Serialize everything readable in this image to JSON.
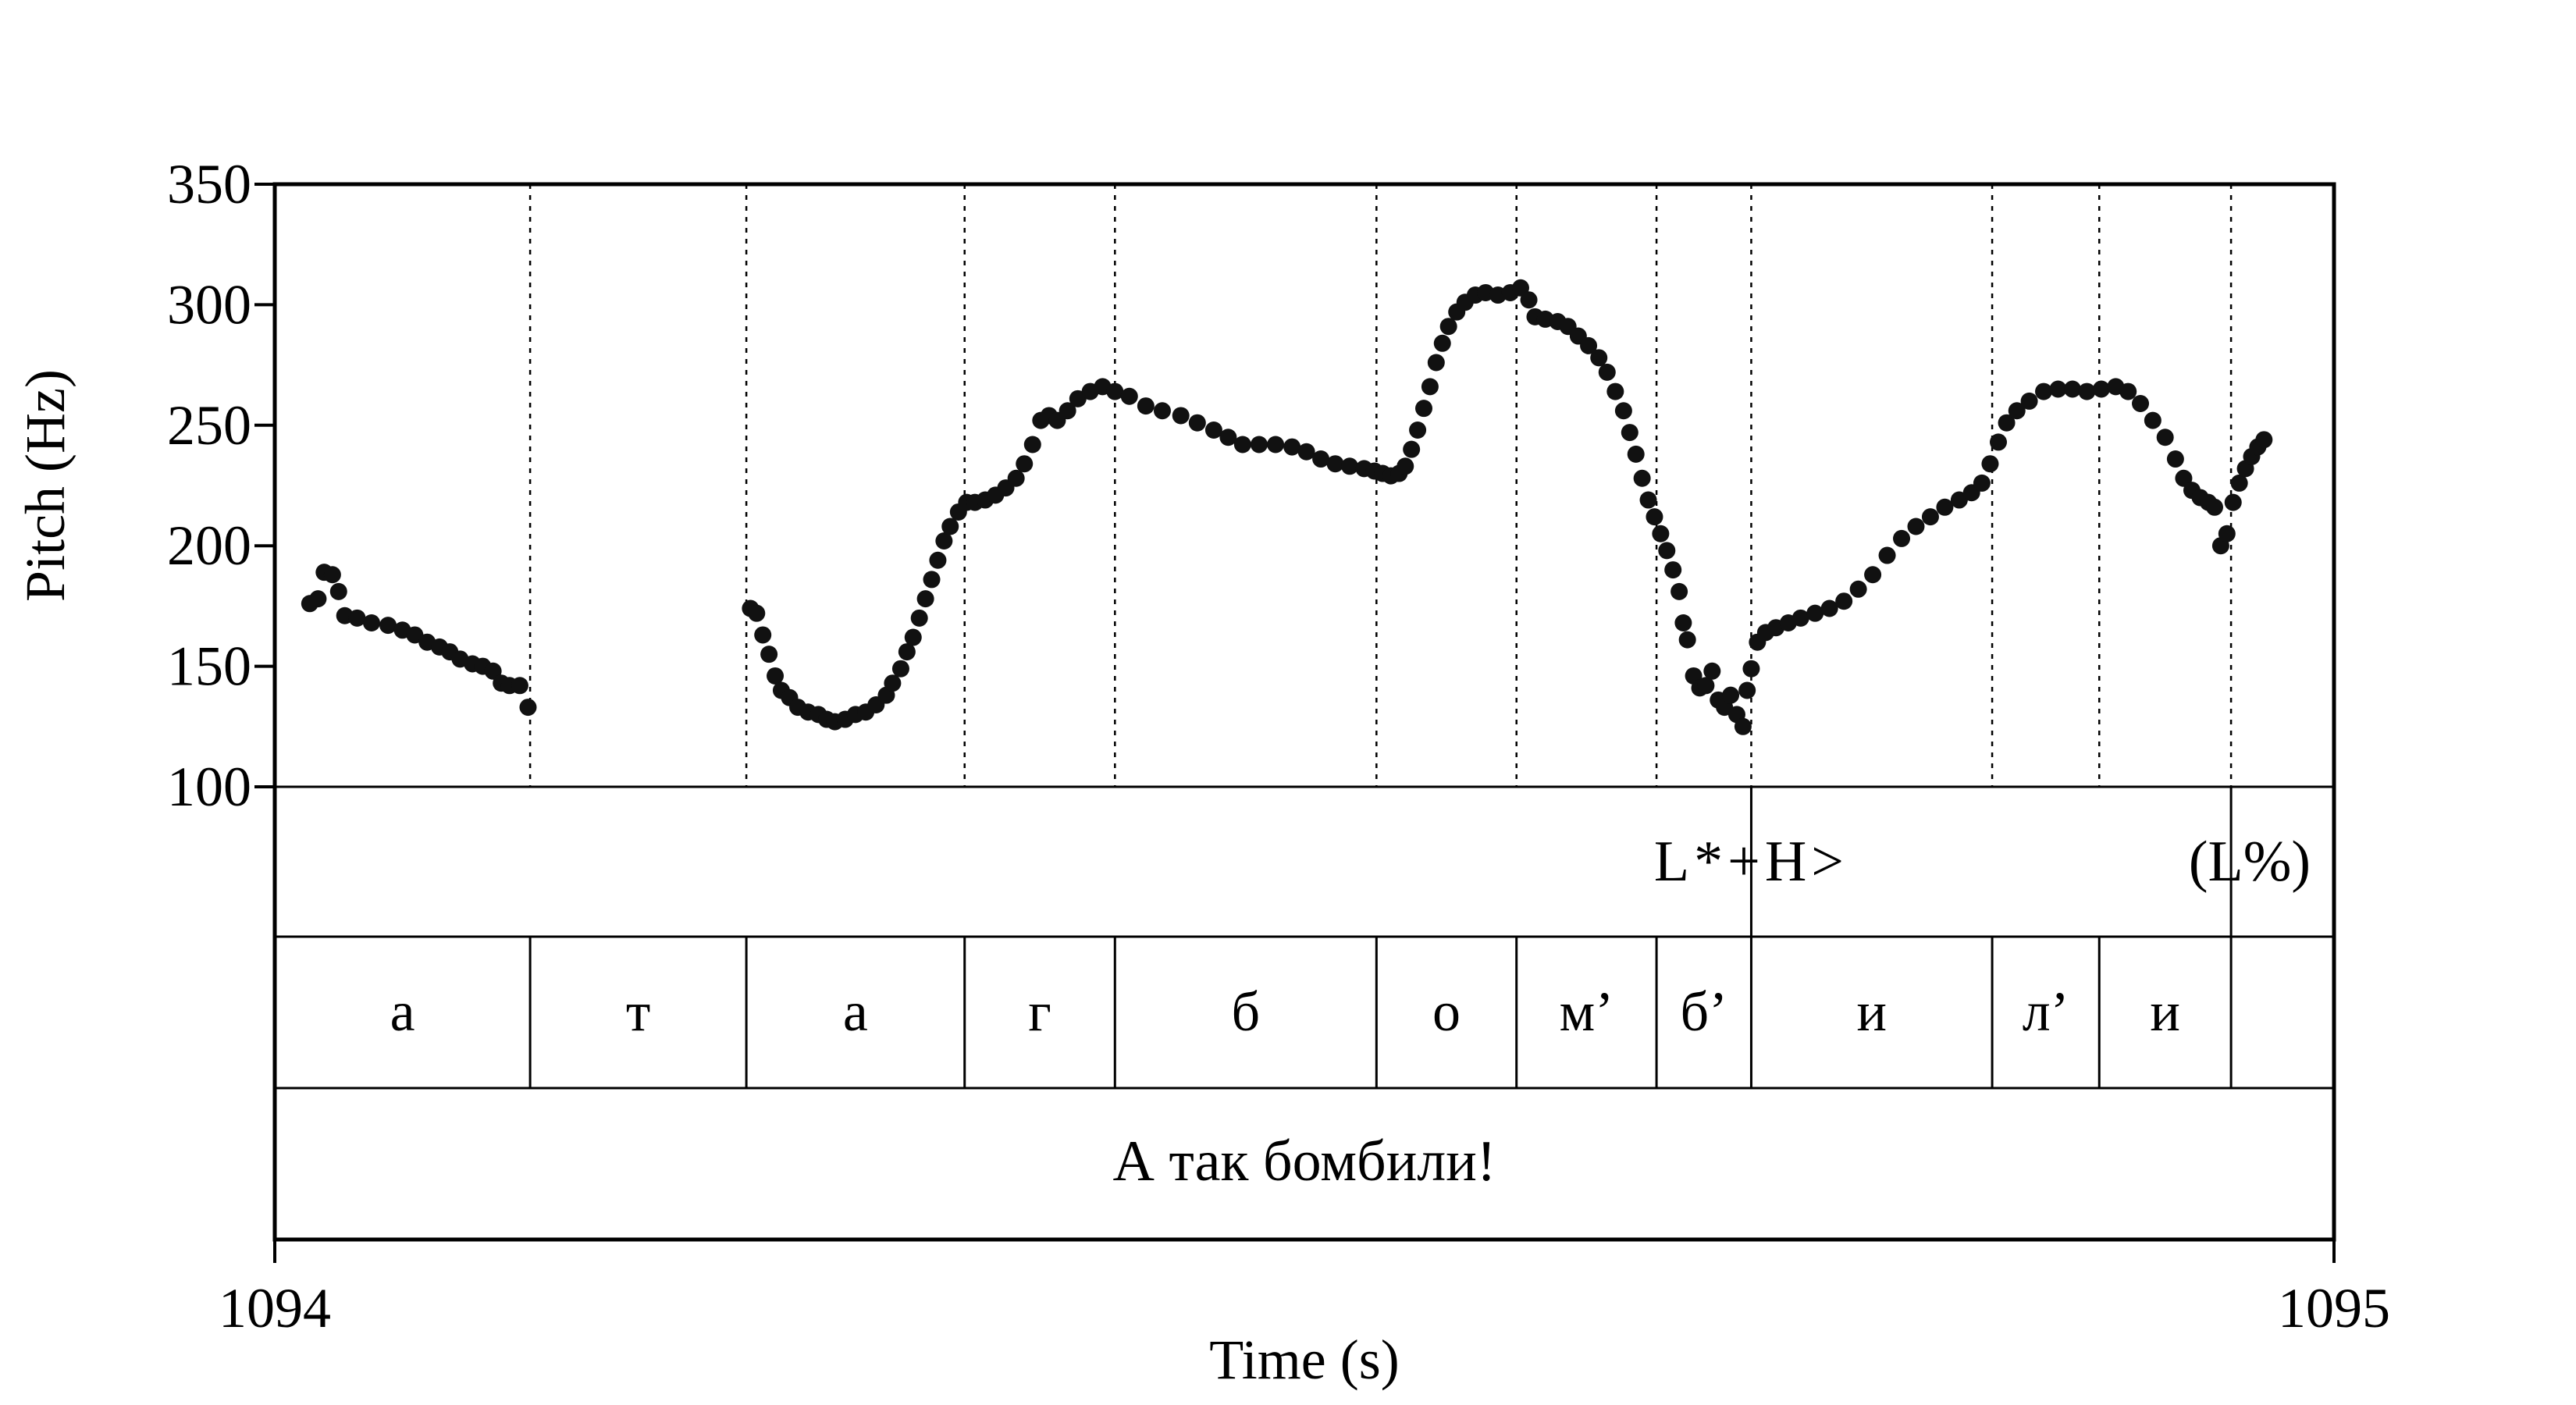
{
  "chart_data": {
    "type": "scatter",
    "title": "",
    "xlabel": "Time (s)",
    "ylabel": "Pitch (Hz)",
    "xlim": [
      1094,
      1095
    ],
    "ylim": [
      100,
      350
    ],
    "x_tick_labels": [
      "1094",
      "1095"
    ],
    "y_tick_labels": [
      "100",
      "150",
      "200",
      "250",
      "300",
      "350"
    ],
    "y_ticks": [
      100,
      150,
      200,
      250,
      300,
      350
    ],
    "grid": false,
    "legend": "none",
    "point_color": "#111111",
    "segment_boundaries": [
      1094.124,
      1094.229,
      1094.335,
      1094.408,
      1094.535,
      1094.603,
      1094.671,
      1094.717,
      1094.834,
      1094.886,
      1094.95
    ],
    "tone_tier": [
      {
        "label": "L*+H>",
        "t": 1094.717
      },
      {
        "label": "(L%)",
        "t": 1094.95
      }
    ],
    "segment_tier": [
      {
        "label": "а",
        "start": 1094.0,
        "end": 1094.124
      },
      {
        "label": "т",
        "start": 1094.124,
        "end": 1094.229
      },
      {
        "label": "а",
        "start": 1094.229,
        "end": 1094.335
      },
      {
        "label": "г",
        "start": 1094.335,
        "end": 1094.408
      },
      {
        "label": "б",
        "start": 1094.408,
        "end": 1094.535
      },
      {
        "label": "о",
        "start": 1094.535,
        "end": 1094.603
      },
      {
        "label": "м’",
        "start": 1094.603,
        "end": 1094.671
      },
      {
        "label": "б’",
        "start": 1094.671,
        "end": 1094.717
      },
      {
        "label": "и",
        "start": 1094.717,
        "end": 1094.834
      },
      {
        "label": "л’",
        "start": 1094.834,
        "end": 1094.886
      },
      {
        "label": "и",
        "start": 1094.886,
        "end": 1094.95
      },
      {
        "label": "",
        "start": 1094.95,
        "end": 1095.0
      }
    ],
    "sentence_tier": {
      "label": "А так бомбили!",
      "start": 1094.0,
      "end": 1095.0
    },
    "series": [
      {
        "points": [
          [
            1094.017,
            176
          ],
          [
            1094.021,
            178
          ],
          [
            1094.024,
            189
          ],
          [
            1094.028,
            188
          ],
          [
            1094.031,
            181
          ],
          [
            1094.034,
            171
          ],
          [
            1094.04,
            170
          ],
          [
            1094.047,
            168
          ],
          [
            1094.055,
            167
          ],
          [
            1094.062,
            165
          ],
          [
            1094.068,
            163
          ],
          [
            1094.074,
            160
          ],
          [
            1094.08,
            158
          ],
          [
            1094.085,
            156
          ],
          [
            1094.09,
            153
          ],
          [
            1094.096,
            151
          ],
          [
            1094.101,
            150
          ],
          [
            1094.106,
            148
          ],
          [
            1094.11,
            143
          ],
          [
            1094.114,
            142
          ],
          [
            1094.119,
            142
          ],
          [
            1094.123,
            133
          ],
          [
            1094.231,
            174
          ],
          [
            1094.234,
            172
          ],
          [
            1094.237,
            163
          ],
          [
            1094.24,
            155
          ],
          [
            1094.243,
            146
          ],
          [
            1094.246,
            140
          ],
          [
            1094.25,
            137
          ],
          [
            1094.254,
            133
          ],
          [
            1094.259,
            131
          ],
          [
            1094.264,
            130
          ],
          [
            1094.268,
            128
          ],
          [
            1094.272,
            127
          ],
          [
            1094.277,
            128
          ],
          [
            1094.282,
            130
          ],
          [
            1094.287,
            131
          ],
          [
            1094.292,
            134
          ],
          [
            1094.297,
            138
          ],
          [
            1094.3,
            143
          ],
          [
            1094.304,
            149
          ],
          [
            1094.307,
            156
          ],
          [
            1094.31,
            162
          ],
          [
            1094.313,
            170
          ],
          [
            1094.316,
            178
          ],
          [
            1094.319,
            186
          ],
          [
            1094.322,
            194
          ],
          [
            1094.325,
            202
          ],
          [
            1094.328,
            208
          ],
          [
            1094.332,
            214
          ],
          [
            1094.336,
            218
          ],
          [
            1094.34,
            218
          ],
          [
            1094.345,
            219
          ],
          [
            1094.35,
            221
          ],
          [
            1094.355,
            224
          ],
          [
            1094.36,
            228
          ],
          [
            1094.364,
            234
          ],
          [
            1094.368,
            242
          ],
          [
            1094.372,
            252
          ],
          [
            1094.376,
            254
          ],
          [
            1094.38,
            252
          ],
          [
            1094.385,
            256
          ],
          [
            1094.39,
            261
          ],
          [
            1094.396,
            264
          ],
          [
            1094.402,
            266
          ],
          [
            1094.408,
            264
          ],
          [
            1094.415,
            262
          ],
          [
            1094.423,
            258
          ],
          [
            1094.431,
            256
          ],
          [
            1094.44,
            254
          ],
          [
            1094.448,
            251
          ],
          [
            1094.456,
            248
          ],
          [
            1094.463,
            245
          ],
          [
            1094.47,
            242
          ],
          [
            1094.478,
            242
          ],
          [
            1094.486,
            242
          ],
          [
            1094.494,
            241
          ],
          [
            1094.501,
            239
          ],
          [
            1094.508,
            236
          ],
          [
            1094.515,
            234
          ],
          [
            1094.522,
            233
          ],
          [
            1094.529,
            232
          ],
          [
            1094.534,
            231
          ],
          [
            1094.538,
            230
          ],
          [
            1094.542,
            229
          ],
          [
            1094.546,
            230
          ],
          [
            1094.549,
            233
          ],
          [
            1094.552,
            240
          ],
          [
            1094.555,
            248
          ],
          [
            1094.558,
            257
          ],
          [
            1094.561,
            266
          ],
          [
            1094.564,
            276
          ],
          [
            1094.567,
            284
          ],
          [
            1094.57,
            291
          ],
          [
            1094.574,
            297
          ],
          [
            1094.578,
            301
          ],
          [
            1094.583,
            304
          ],
          [
            1094.588,
            305
          ],
          [
            1094.594,
            304
          ],
          [
            1094.6,
            305
          ],
          [
            1094.605,
            307
          ],
          [
            1094.609,
            302
          ],
          [
            1094.612,
            295
          ],
          [
            1094.617,
            294
          ],
          [
            1094.623,
            293
          ],
          [
            1094.628,
            291
          ],
          [
            1094.633,
            287
          ],
          [
            1094.638,
            283
          ],
          [
            1094.643,
            278
          ],
          [
            1094.647,
            272
          ],
          [
            1094.651,
            264
          ],
          [
            1094.655,
            256
          ],
          [
            1094.658,
            247
          ],
          [
            1094.661,
            238
          ],
          [
            1094.664,
            228
          ],
          [
            1094.667,
            219
          ],
          [
            1094.67,
            212
          ],
          [
            1094.673,
            205
          ],
          [
            1094.676,
            198
          ],
          [
            1094.679,
            190
          ],
          [
            1094.682,
            181
          ],
          [
            1094.684,
            168
          ],
          [
            1094.686,
            161
          ],
          [
            1094.689,
            146
          ],
          [
            1094.692,
            141
          ],
          [
            1094.695,
            142
          ],
          [
            1094.698,
            148
          ],
          [
            1094.701,
            136
          ],
          [
            1094.704,
            133
          ],
          [
            1094.707,
            138
          ],
          [
            1094.71,
            130
          ],
          [
            1094.713,
            125
          ],
          [
            1094.715,
            140
          ],
          [
            1094.717,
            149
          ],
          [
            1094.72,
            160
          ],
          [
            1094.724,
            164
          ],
          [
            1094.729,
            166
          ],
          [
            1094.735,
            168
          ],
          [
            1094.741,
            170
          ],
          [
            1094.748,
            172
          ],
          [
            1094.755,
            174
          ],
          [
            1094.762,
            177
          ],
          [
            1094.769,
            182
          ],
          [
            1094.776,
            188
          ],
          [
            1094.783,
            196
          ],
          [
            1094.79,
            203
          ],
          [
            1094.797,
            208
          ],
          [
            1094.804,
            212
          ],
          [
            1094.811,
            216
          ],
          [
            1094.818,
            219
          ],
          [
            1094.824,
            222
          ],
          [
            1094.829,
            226
          ],
          [
            1094.833,
            234
          ],
          [
            1094.837,
            243
          ],
          [
            1094.841,
            251
          ],
          [
            1094.846,
            256
          ],
          [
            1094.852,
            260
          ],
          [
            1094.859,
            264
          ],
          [
            1094.866,
            265
          ],
          [
            1094.873,
            265
          ],
          [
            1094.88,
            264
          ],
          [
            1094.887,
            265
          ],
          [
            1094.894,
            266
          ],
          [
            1094.9,
            264
          ],
          [
            1094.906,
            259
          ],
          [
            1094.912,
            252
          ],
          [
            1094.918,
            245
          ],
          [
            1094.923,
            236
          ],
          [
            1094.927,
            228
          ],
          [
            1094.931,
            223
          ],
          [
            1094.935,
            220
          ],
          [
            1094.939,
            218
          ],
          [
            1094.942,
            216
          ],
          [
            1094.945,
            200
          ],
          [
            1094.948,
            205
          ],
          [
            1094.951,
            218
          ],
          [
            1094.954,
            226
          ],
          [
            1094.957,
            232
          ],
          [
            1094.96,
            237
          ],
          [
            1094.963,
            241
          ],
          [
            1094.966,
            244
          ]
        ]
      }
    ]
  }
}
